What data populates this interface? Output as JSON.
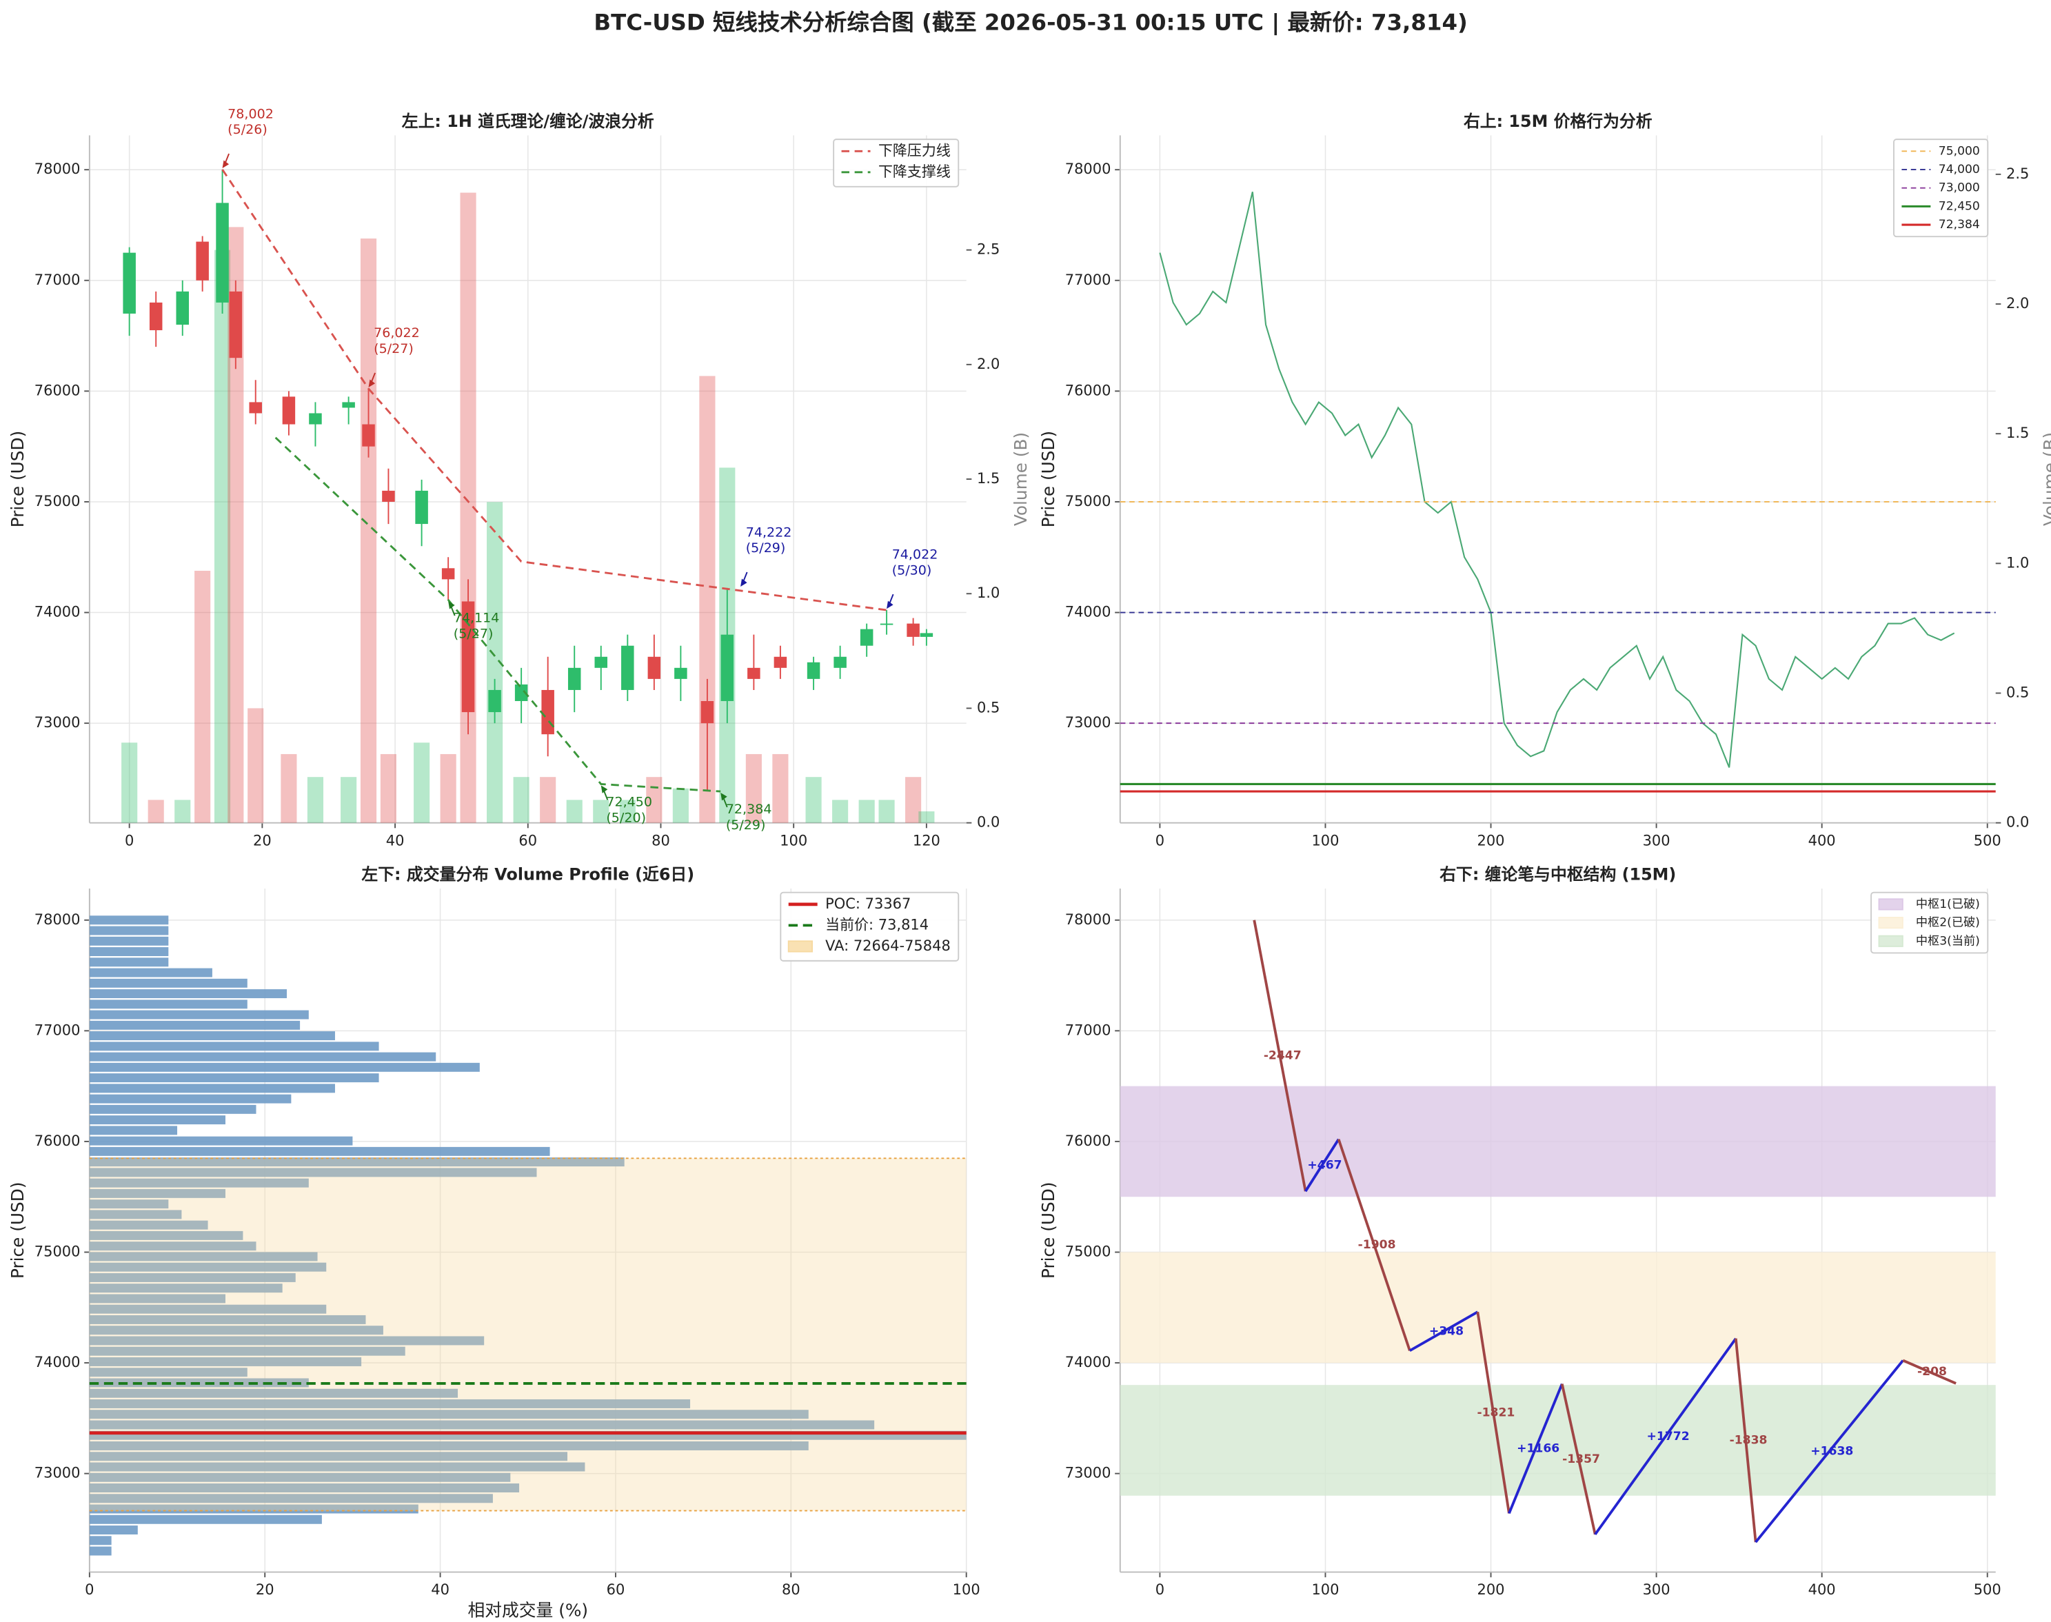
{
  "title": "BTC-USD 短线技术分析综合图 (截至 2026-05-31 00:15 UTC | 最新价: 73,814)",
  "chart_data": [
    {
      "type": "candlestick",
      "title": "左上: 1H 道氏理论/缠论/波浪分析",
      "ylabel": "Price (USD)",
      "y2label": "Volume (B)",
      "x": [
        0,
        4,
        8,
        11,
        14,
        16,
        19,
        24,
        28,
        33,
        36,
        39,
        44,
        48,
        51,
        55,
        59,
        63,
        67,
        71,
        75,
        79,
        83,
        87,
        90,
        94,
        98,
        103,
        107,
        111,
        114,
        118,
        120
      ],
      "open": [
        76700,
        76800,
        76600,
        77350,
        76800,
        76900,
        75900,
        75950,
        75700,
        75850,
        75700,
        75100,
        74800,
        74400,
        74100,
        73100,
        73200,
        73300,
        73300,
        73500,
        73300,
        73600,
        73400,
        73200,
        73200,
        73500,
        73600,
        73400,
        73500,
        73700,
        73900,
        73900,
        73780
      ],
      "high": [
        77300,
        76900,
        77000,
        77400,
        78002,
        77000,
        76100,
        76000,
        75900,
        75950,
        76022,
        75300,
        75200,
        74500,
        74300,
        73400,
        73500,
        73600,
        73700,
        73700,
        73800,
        73800,
        73700,
        73400,
        74222,
        73800,
        73700,
        73600,
        73700,
        73900,
        74022,
        73950,
        73850
      ],
      "low": [
        76500,
        76400,
        76500,
        76900,
        76700,
        76200,
        75700,
        75600,
        75500,
        75700,
        75400,
        74800,
        74600,
        74114,
        72900,
        73000,
        73000,
        72700,
        73100,
        73300,
        73200,
        73300,
        73200,
        72384,
        73000,
        73300,
        73400,
        73300,
        73400,
        73600,
        73800,
        73700,
        73700
      ],
      "close": [
        77250,
        76550,
        76900,
        77000,
        77700,
        76300,
        75800,
        75700,
        75800,
        75900,
        75500,
        75000,
        75100,
        74300,
        73100,
        73300,
        73350,
        72900,
        73500,
        73600,
        73700,
        73400,
        73500,
        73000,
        73800,
        73400,
        73500,
        73550,
        73600,
        73850,
        73900,
        73780,
        73814
      ],
      "volume": [
        0.35,
        0.1,
        0.1,
        1.1,
        2.5,
        2.6,
        0.5,
        0.3,
        0.2,
        0.2,
        2.55,
        0.3,
        0.35,
        0.3,
        2.75,
        1.4,
        0.2,
        0.2,
        0.1,
        0.1,
        0.1,
        0.2,
        0.15,
        1.95,
        1.55,
        0.3,
        0.3,
        0.2,
        0.1,
        0.1,
        0.1,
        0.2,
        0.05
      ],
      "up_color": "#2ebd6b",
      "down_color": "#e04a4a",
      "xlim": [
        -6,
        126
      ],
      "xticks": [
        0,
        20,
        40,
        60,
        80,
        100,
        120
      ],
      "ylim": [
        72100,
        78310
      ],
      "yticks": [
        73000,
        74000,
        75000,
        76000,
        77000,
        78000
      ],
      "y2lim": [
        0,
        3
      ],
      "y2ticks": [
        {
          "value": 0,
          "label": "0.0"
        },
        0.5,
        {
          "value": 1,
          "label": "1.0"
        },
        1.5,
        {
          "value": 2,
          "label": "2.0"
        },
        2.5
      ],
      "grid": true,
      "legend": "upper right",
      "trend_lines": [
        {
          "name": "下降压力线",
          "color": "#d9534f",
          "x": [
            14,
            36,
            59,
            114
          ],
          "y": [
            78002,
            76022,
            74460,
            74022
          ]
        },
        {
          "name": "下降支撑线",
          "color": "#3a963a",
          "x": [
            22,
            48,
            71,
            89
          ],
          "y": [
            75580,
            74114,
            72450,
            72384
          ]
        }
      ],
      "annotations": [
        {
          "label": "78,002",
          "date": "(5/26)",
          "x": 14,
          "y": 78002,
          "color": "#c0302b",
          "placement": "above"
        },
        {
          "label": "76,022",
          "date": "(5/27)",
          "x": 36,
          "y": 76022,
          "color": "#c0302b",
          "placement": "above"
        },
        {
          "label": "74,222",
          "date": "(5/29)",
          "x": 92,
          "y": 74222,
          "color": "#1a1aa0",
          "placement": "above"
        },
        {
          "label": "74,022",
          "date": "(5/30)",
          "x": 114,
          "y": 74022,
          "color": "#1a1aa0",
          "placement": "above"
        },
        {
          "label": "74,114",
          "date": "(5/27)",
          "x": 48,
          "y": 74114,
          "color": "#1f7a1f",
          "placement": "below"
        },
        {
          "label": "72,450",
          "date": "(5/20)",
          "x": 71,
          "y": 72450,
          "color": "#1f7a1f",
          "placement": "below"
        },
        {
          "label": "72,384",
          "date": "(5/29)",
          "x": 89,
          "y": 72384,
          "color": "#1f7a1f",
          "placement": "below"
        }
      ]
    },
    {
      "type": "line",
      "title": "右上: 15M 价格行为分析",
      "ylabel": "Price (USD)",
      "y2label": "Volume (B)",
      "x": [
        0,
        8,
        16,
        24,
        32,
        40,
        48,
        56,
        64,
        72,
        80,
        88,
        96,
        104,
        112,
        120,
        128,
        136,
        144,
        152,
        160,
        168,
        176,
        184,
        192,
        200,
        208,
        216,
        224,
        232,
        240,
        248,
        256,
        264,
        272,
        280,
        288,
        296,
        304,
        312,
        320,
        328,
        336,
        344,
        352,
        360,
        368,
        376,
        384,
        392,
        400,
        408,
        416,
        424,
        432,
        440,
        448,
        456,
        464,
        472,
        480
      ],
      "values": [
        77250,
        76800,
        76600,
        76700,
        76900,
        76800,
        77300,
        77800,
        76600,
        76200,
        75900,
        75700,
        75900,
        75800,
        75600,
        75700,
        75400,
        75600,
        75850,
        75700,
        75000,
        74900,
        75000,
        74500,
        74300,
        74000,
        73000,
        72800,
        72700,
        72750,
        73100,
        73300,
        73400,
        73300,
        73500,
        73600,
        73700,
        73400,
        73600,
        73300,
        73200,
        73000,
        72900,
        72600,
        73800,
        73700,
        73400,
        73300,
        73600,
        73500,
        73400,
        73500,
        73400,
        73600,
        73700,
        73900,
        73900,
        73950,
        73800,
        73750,
        73814
      ],
      "color": "#4aa874",
      "xlim": [
        -24,
        505
      ],
      "xticks": [
        0,
        100,
        200,
        300,
        400,
        500
      ],
      "ylim": [
        72100,
        78310
      ],
      "yticks": [
        73000,
        74000,
        75000,
        76000,
        77000,
        78000
      ],
      "y2lim": [
        0,
        2.65
      ],
      "y2ticks": [
        {
          "value": 0,
          "label": "0.0"
        },
        0.5,
        {
          "value": 1,
          "label": "1.0"
        },
        1.5,
        {
          "value": 2,
          "label": "2.0"
        },
        2.5
      ],
      "grid": true,
      "legend": "upper right",
      "levels": [
        {
          "value": 75000,
          "label": "75,000",
          "color": "#f0b450",
          "style": "dashed"
        },
        {
          "value": 74000,
          "label": "74,000",
          "color": "#303090",
          "style": "dashed"
        },
        {
          "value": 73000,
          "label": "73,000",
          "color": "#8a3a9a",
          "style": "dashed"
        },
        {
          "value": 72450,
          "label": "72,450",
          "color": "#2a8a2a",
          "style": "solid"
        },
        {
          "value": 72384,
          "label": "72,384",
          "color": "#d42a2a",
          "style": "solid"
        }
      ]
    },
    {
      "type": "bar",
      "orientation": "horizontal",
      "title": "左下: 成交量分布 Volume Profile (近6日)",
      "xlabel": "相对成交量 (%)",
      "ylabel": "Price (USD)",
      "y": [
        78000,
        77905,
        77810,
        77715,
        77620,
        77525,
        77430,
        77335,
        77240,
        77145,
        77050,
        76955,
        76860,
        76765,
        76670,
        76575,
        76480,
        76385,
        76290,
        76195,
        76100,
        76005,
        75910,
        75815,
        75720,
        75625,
        75530,
        75435,
        75340,
        75245,
        75150,
        75055,
        74960,
        74865,
        74770,
        74675,
        74580,
        74485,
        74390,
        74295,
        74200,
        74105,
        74010,
        73915,
        73820,
        73725,
        73630,
        73535,
        73440,
        73345,
        73250,
        73155,
        73060,
        72965,
        72870,
        72775,
        72680,
        72585,
        72490,
        72395,
        72300
      ],
      "values": [
        9,
        9,
        9,
        9,
        9,
        14,
        18,
        22.5,
        18,
        25,
        24,
        28,
        33,
        39.5,
        44.5,
        33,
        28,
        23,
        19,
        15.5,
        10,
        30,
        52.5,
        61,
        51,
        25,
        15.5,
        9,
        10.5,
        13.5,
        17.5,
        19,
        26,
        27,
        23.5,
        22,
        15.5,
        27,
        31.5,
        33.5,
        45,
        36,
        31,
        18,
        25,
        42,
        68.5,
        82,
        89.5,
        100,
        82,
        54.5,
        56.5,
        48,
        49,
        46,
        37.5,
        26.5,
        5.5,
        2.5,
        2.5
      ],
      "color": "#6f9bc6",
      "xlim": [
        0,
        100
      ],
      "xticks": [
        0,
        20,
        40,
        60,
        80,
        100
      ],
      "ylim": [
        72110,
        78285
      ],
      "yticks": [
        73000,
        74000,
        75000,
        76000,
        77000,
        78000
      ],
      "grid": true,
      "legend": "upper right",
      "poc": {
        "value": 73367,
        "label": "POC: 73367",
        "color": "#d42020"
      },
      "current": {
        "value": 73814,
        "label": "当前价: 73,814",
        "color": "#1a7a1a"
      },
      "value_area": {
        "range": [
          72664,
          75848
        ],
        "label": "VA: 72664-75848",
        "color": "#f7d9a0"
      }
    },
    {
      "type": "line",
      "title": "右下: 缠论笔与中枢结构 (15M)",
      "ylabel": "Price (USD)",
      "strokes": {
        "x": [
          57,
          88,
          108,
          151,
          192,
          211,
          243,
          263,
          348,
          360,
          449,
          481
        ],
        "y": [
          78000,
          75550,
          76020,
          74110,
          74460,
          72640,
          73810,
          72450,
          74220,
          72380,
          74022,
          73814
        ],
        "changes": [
          -2447,
          467,
          -1908,
          348,
          -1821,
          1166,
          -1357,
          1772,
          -1838,
          1638,
          -208
        ],
        "change_labels": [
          "-2447",
          "+467",
          "-1908",
          "+348",
          "-1821",
          "+1166",
          "-1357",
          "+1772",
          "-1838",
          "+1638",
          "-208"
        ],
        "up_color": "#2424d0",
        "down_color": "#a04545"
      },
      "zones": [
        {
          "name": "中枢1(已破)",
          "range": [
            75500,
            76500
          ],
          "color": "#dcc8e6"
        },
        {
          "name": "中枢2(已破)",
          "range": [
            74000,
            75000
          ],
          "color": "#fbefd6"
        },
        {
          "name": "中枢3(当前)",
          "range": [
            72800,
            73800
          ],
          "color": "#d5e9d2"
        }
      ],
      "xlim": [
        -24,
        505
      ],
      "xticks": [
        0,
        100,
        200,
        300,
        400,
        500
      ],
      "ylim": [
        72110,
        78285
      ],
      "yticks": [
        73000,
        74000,
        75000,
        76000,
        77000,
        78000
      ],
      "grid": true,
      "legend": "upper right"
    }
  ]
}
